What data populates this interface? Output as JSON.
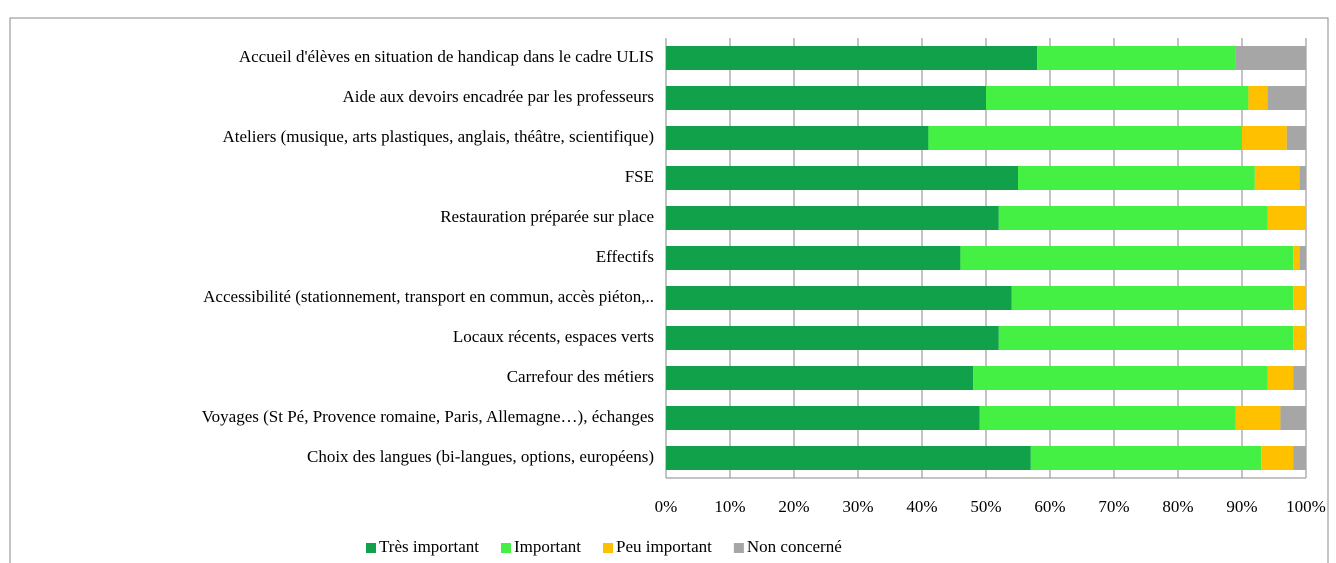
{
  "chart_data": {
    "type": "stacked-bar-horizontal",
    "categories": [
      "Accueil d'élèves en situation de handicap dans le cadre ULIS",
      "Aide aux devoirs encadrée par les professeurs",
      "Ateliers (musique, arts plastiques, anglais, théâtre, scientifique)",
      "FSE",
      "Restauration préparée sur place",
      "Effectifs",
      "Accessibilité (stationnement, transport en commun, accès piéton,..",
      "Locaux récents, espaces verts",
      "Carrefour des métiers",
      "Voyages (St Pé, Provence romaine, Paris, Allemagne…), échanges",
      "Choix des langues (bi-langues, options, européens)"
    ],
    "series": [
      {
        "name": "Très important",
        "color": "#12a14b",
        "values": [
          58,
          50,
          41,
          55,
          52,
          46,
          54,
          52,
          48,
          49,
          57
        ]
      },
      {
        "name": "Important",
        "color": "#44f044",
        "values": [
          31,
          41,
          49,
          37,
          42,
          52,
          44,
          46,
          46,
          40,
          36
        ]
      },
      {
        "name": "Peu important",
        "color": "#ffc000",
        "values": [
          0,
          3,
          7,
          7,
          6,
          1,
          2,
          2,
          4,
          7,
          5
        ]
      },
      {
        "name": "Non concerné",
        "color": "#a6a6a6",
        "values": [
          11,
          6,
          3,
          1,
          0,
          1,
          0,
          0,
          2,
          4,
          2
        ]
      }
    ],
    "xlim": [
      0,
      100
    ],
    "xticks": [
      {
        "value": 0,
        "label": "0%"
      },
      {
        "value": 10,
        "label": "10%"
      },
      {
        "value": 20,
        "label": "20%"
      },
      {
        "value": 30,
        "label": "30%"
      },
      {
        "value": 40,
        "label": "40%"
      },
      {
        "value": 50,
        "label": "50%"
      },
      {
        "value": 60,
        "label": "60%"
      },
      {
        "value": 70,
        "label": "70%"
      },
      {
        "value": 80,
        "label": "80%"
      },
      {
        "value": 90,
        "label": "90%"
      },
      {
        "value": 100,
        "label": "100%"
      }
    ],
    "grid": true,
    "legend": "bottom"
  }
}
